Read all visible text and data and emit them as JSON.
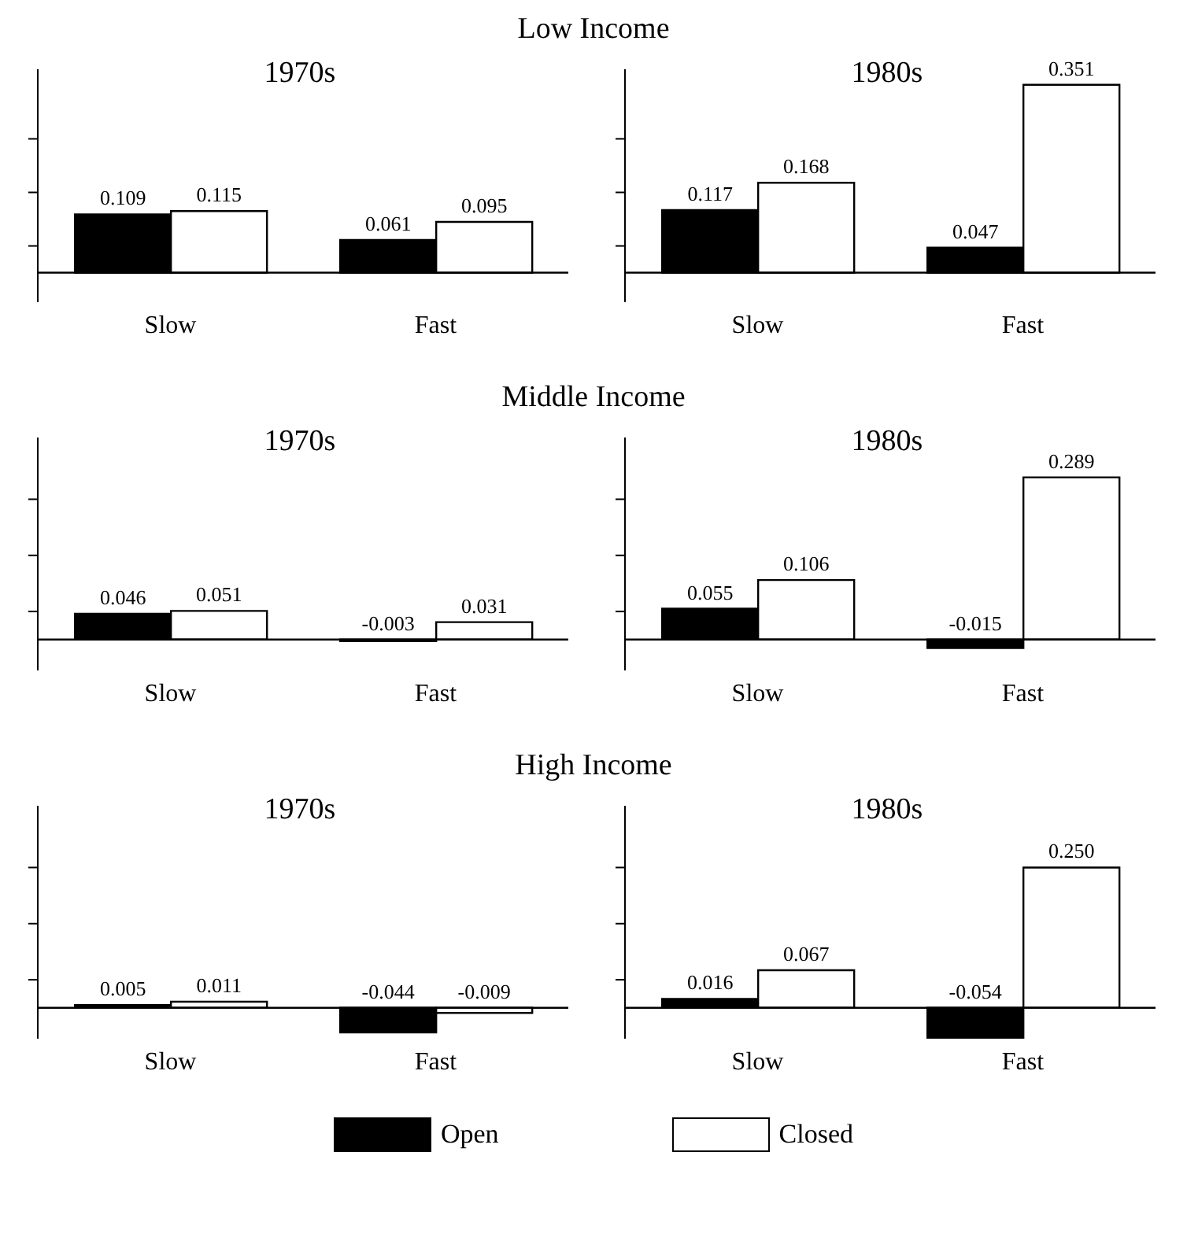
{
  "chart_data": [
    {
      "type": "bar",
      "title": "1970s",
      "annotations": [
        "Low Income"
      ],
      "categories": [
        "Slow",
        "Fast"
      ],
      "series": [
        {
          "name": "Open",
          "color": "#000000",
          "values": [
            0.109,
            0.061
          ]
        },
        {
          "name": "Closed",
          "color": "#ffffff",
          "values": [
            0.115,
            0.095
          ]
        }
      ],
      "ylim": [
        -0.055,
        0.38
      ],
      "yticks": [
        {
          "value": 0.05,
          "label": null
        },
        {
          "value": 0.15,
          "label": null
        },
        {
          "value": 0.25,
          "label": null
        }
      ],
      "tick_labels": "x",
      "data_labels": true,
      "legend": "bottom"
    },
    {
      "type": "bar",
      "title": "1980s",
      "categories": [
        "Slow",
        "Fast"
      ],
      "series": [
        {
          "color": "#000000",
          "values": [
            0.117,
            0.047
          ]
        },
        {
          "color": "#ffffff",
          "values": [
            0.168,
            0.351
          ]
        }
      ],
      "ylim": [
        -0.055,
        0.38
      ],
      "yticks": [
        {
          "value": 0.05,
          "label": null
        },
        {
          "value": 0.15,
          "label": null
        },
        {
          "value": 0.25,
          "label": null
        }
      ],
      "tick_labels": "x",
      "data_labels": true
    },
    {
      "type": "bar",
      "title": "1970s",
      "annotations": [
        "Middle Income"
      ],
      "categories": [
        "Slow",
        "Fast"
      ],
      "series": [
        {
          "color": "#000000",
          "values": [
            0.046,
            -0.003
          ]
        },
        {
          "color": "#ffffff",
          "values": [
            0.051,
            0.031
          ]
        }
      ],
      "ylim": [
        -0.055,
        0.36
      ],
      "yticks": [
        {
          "value": 0.05,
          "label": null
        },
        {
          "value": 0.15,
          "label": null
        },
        {
          "value": 0.25,
          "label": null
        }
      ],
      "tick_labels": "x",
      "data_labels": true
    },
    {
      "type": "bar",
      "title": "1980s",
      "categories": [
        "Slow",
        "Fast"
      ],
      "series": [
        {
          "color": "#000000",
          "values": [
            0.055,
            -0.015
          ]
        },
        {
          "color": "#ffffff",
          "values": [
            0.106,
            0.289
          ]
        }
      ],
      "ylim": [
        -0.055,
        0.36
      ],
      "yticks": [
        {
          "value": 0.05,
          "label": null
        },
        {
          "value": 0.15,
          "label": null
        },
        {
          "value": 0.25,
          "label": null
        }
      ],
      "tick_labels": "x",
      "data_labels": true
    },
    {
      "type": "bar",
      "title": "1970s",
      "annotations": [
        "High Income"
      ],
      "categories": [
        "Slow",
        "Fast"
      ],
      "series": [
        {
          "color": "#000000",
          "values": [
            0.005,
            -0.044
          ]
        },
        {
          "color": "#ffffff",
          "values": [
            0.011,
            -0.009
          ]
        }
      ],
      "ylim": [
        -0.055,
        0.36
      ],
      "yticks": [
        {
          "value": 0.05,
          "label": null
        },
        {
          "value": 0.15,
          "label": null
        },
        {
          "value": 0.25,
          "label": null
        }
      ],
      "tick_labels": "x",
      "data_labels": true
    },
    {
      "type": "bar",
      "title": "1980s",
      "categories": [
        "Slow",
        "Fast"
      ],
      "series": [
        {
          "color": "#000000",
          "values": [
            0.016,
            -0.054
          ],
          "value_labels": [
            "0.016",
            "-0.054"
          ]
        },
        {
          "color": "#ffffff",
          "values": [
            0.067,
            0.25
          ],
          "value_labels": [
            "0.067",
            "0.250"
          ]
        }
      ],
      "ylim": [
        -0.055,
        0.36
      ],
      "yticks": [
        {
          "value": 0.05,
          "label": null
        },
        {
          "value": 0.15,
          "label": null
        },
        {
          "value": 0.25,
          "label": null
        }
      ],
      "tick_labels": "x"
    }
  ]
}
